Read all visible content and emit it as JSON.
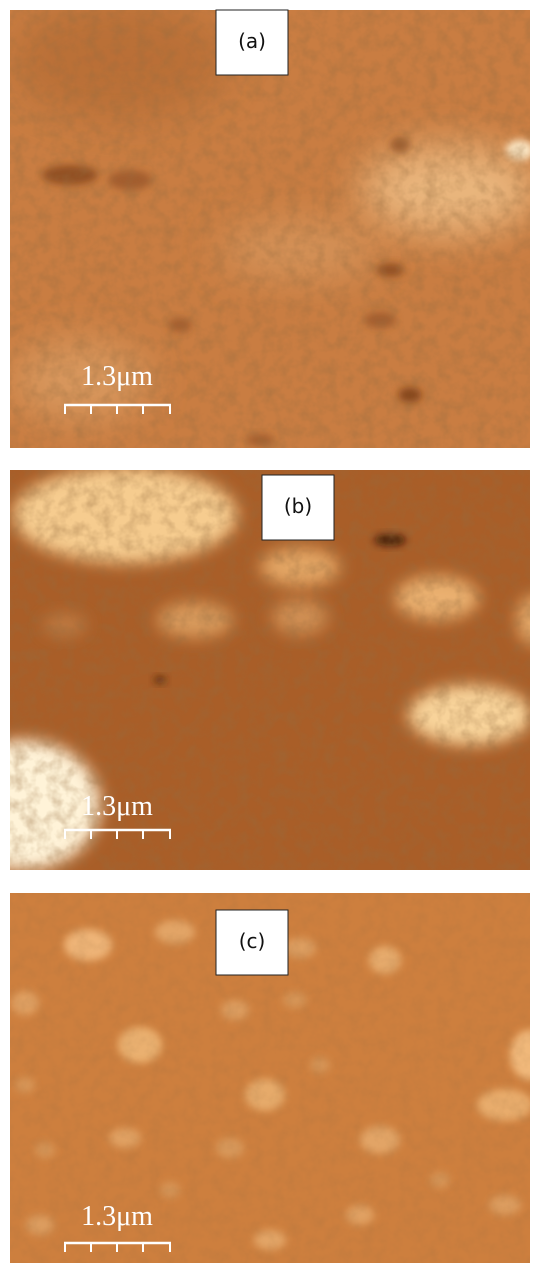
{
  "panels": [
    {
      "label": "(a)",
      "scale_bar": "1.3μm"
    },
    {
      "label": "(b)",
      "scale_bar": "1.3μm"
    },
    {
      "label": "(c)",
      "scale_bar": "1.3μm"
    }
  ]
}
